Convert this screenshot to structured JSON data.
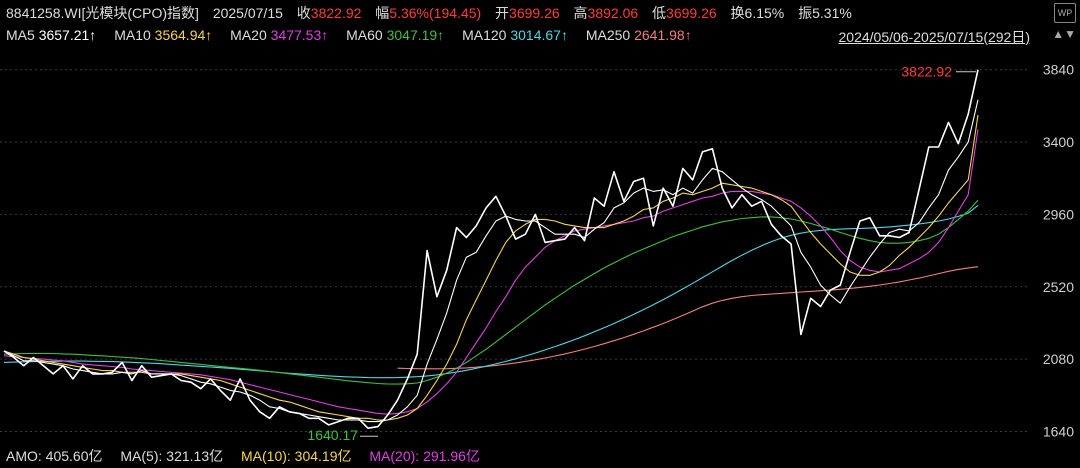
{
  "header": {
    "code": "8841258.WI[光模块(CPO)指数]",
    "date": "2025/07/15",
    "close_label": "收",
    "close": "3822.92",
    "change_label": "幅",
    "change": "5.36%(194.45)",
    "open_label": "开",
    "open": "3699.26",
    "high_label": "高",
    "high": "3892.06",
    "low_label": "低",
    "low": "3699.26",
    "turnover_label": "换",
    "turnover": "6.15%",
    "amp_label": "振",
    "amp": "5.31%"
  },
  "ma_bar": [
    {
      "label": "MA5",
      "value": "3657.21↑",
      "color": "#ffffff"
    },
    {
      "label": "MA10",
      "value": "3564.94↑",
      "color": "#f5d64b"
    },
    {
      "label": "MA20",
      "value": "3477.53↑",
      "color": "#e040e0"
    },
    {
      "label": "MA60",
      "value": "3047.19↑",
      "color": "#3fbf3f"
    },
    {
      "label": "MA120",
      "value": "3014.67↑",
      "color": "#4fd6e6"
    },
    {
      "label": "MA250",
      "value": "2641.98↑",
      "color": "#f08080"
    }
  ],
  "range_text": "2024/05/06-2025/07/15(292日)",
  "bottom_bar": {
    "amo": "AMO: 405.60亿",
    "ma5": "MA(5): 321.13亿",
    "ma10": "MA(10): 304.19亿",
    "ma20": "MA(20): 291.96亿"
  },
  "colors": {
    "up": "#ff3b3b",
    "down": "#3fbf3f",
    "ma5": "#ffffff",
    "ma10": "#f5d64b",
    "ma20": "#e040e0",
    "ma60": "#3fbf3f",
    "ma120": "#4fd6e6",
    "ma250": "#f08080",
    "grid": "#3a3a3a"
  },
  "chart_data": {
    "type": "line",
    "y_ticks": [
      1640,
      2080,
      2520,
      2960,
      3400,
      3840
    ],
    "ylim": [
      1570,
      3960
    ],
    "annotations": {
      "max_label": "3822.92",
      "min_label": "1640.17"
    },
    "x_count": 100,
    "series": [
      {
        "name": "",
        "color": "#ffffff",
        "values": [
          2130,
          2090,
          2040,
          2090,
          2040,
          1990,
          2040,
          1960,
          2040,
          1990,
          1990,
          2000,
          2060,
          1950,
          2040,
          1970,
          1980,
          1990,
          1950,
          1940,
          1900,
          1960,
          1890,
          1830,
          1960,
          1830,
          1760,
          1720,
          1790,
          1760,
          1750,
          1720,
          1720,
          1680,
          1700,
          1720,
          1720,
          1660,
          1670,
          1740,
          1830,
          1960,
          2110,
          2740,
          2460,
          2620,
          2880,
          2820,
          2890,
          3000,
          3070,
          2950,
          2810,
          2840,
          2960,
          2790,
          2800,
          2810,
          2880,
          2800,
          3060,
          3010,
          3220,
          3040,
          3160,
          3180,
          2890,
          3120,
          3010,
          3240,
          3170,
          3340,
          3360,
          3120,
          3000,
          3080,
          3010,
          3040,
          2900,
          2830,
          2780,
          2230,
          2450,
          2400,
          2500,
          2530,
          2730,
          2920,
          2940,
          2830,
          2830,
          2820,
          2850,
          3110,
          3370,
          3370,
          3520,
          3390,
          3570,
          3840
        ]
      },
      {
        "name": "MA5",
        "color": "#ffffff",
        "values": [
          2130,
          2100,
          2070,
          2070,
          2060,
          2050,
          2040,
          2020,
          2010,
          2000,
          1990,
          1990,
          2000,
          1990,
          2010,
          1990,
          1990,
          1990,
          1980,
          1960,
          1940,
          1930,
          1910,
          1890,
          1880,
          1860,
          1830,
          1790,
          1780,
          1760,
          1750,
          1740,
          1730,
          1720,
          1710,
          1710,
          1710,
          1700,
          1700,
          1710,
          1740,
          1790,
          1860,
          2050,
          2200,
          2360,
          2560,
          2700,
          2730,
          2830,
          2920,
          2950,
          2930,
          2920,
          2920,
          2880,
          2840,
          2840,
          2840,
          2820,
          2870,
          2910,
          3000,
          3030,
          3090,
          3120,
          3100,
          3110,
          3080,
          3120,
          3090,
          3170,
          3240,
          3220,
          3170,
          3120,
          3080,
          3050,
          3010,
          2950,
          2890,
          2730,
          2640,
          2530,
          2470,
          2420,
          2520,
          2610,
          2700,
          2780,
          2850,
          2870,
          2860,
          2910,
          3000,
          3080,
          3230,
          3310,
          3400,
          3657
        ]
      },
      {
        "name": "MA10",
        "color": "#f5d64b",
        "values": [
          2130,
          2110,
          2090,
          2080,
          2070,
          2060,
          2050,
          2040,
          2030,
          2020,
          2010,
          2010,
          2000,
          2000,
          2000,
          1990,
          1990,
          1990,
          1990,
          1980,
          1970,
          1960,
          1950,
          1930,
          1910,
          1890,
          1870,
          1850,
          1830,
          1820,
          1800,
          1780,
          1760,
          1750,
          1740,
          1730,
          1720,
          1720,
          1710,
          1710,
          1720,
          1740,
          1780,
          1860,
          1950,
          2050,
          2170,
          2320,
          2440,
          2560,
          2680,
          2790,
          2860,
          2900,
          2930,
          2930,
          2920,
          2900,
          2890,
          2880,
          2880,
          2880,
          2900,
          2920,
          2950,
          2990,
          3000,
          3040,
          3060,
          3090,
          3080,
          3100,
          3120,
          3150,
          3140,
          3130,
          3120,
          3100,
          3080,
          3050,
          3010,
          2930,
          2850,
          2780,
          2720,
          2660,
          2610,
          2590,
          2590,
          2610,
          2650,
          2710,
          2760,
          2820,
          2880,
          2950,
          3030,
          3100,
          3170,
          3565
        ]
      },
      {
        "name": "MA20",
        "color": "#e040e0",
        "values": [
          2100,
          2095,
          2090,
          2085,
          2080,
          2075,
          2070,
          2060,
          2050,
          2045,
          2040,
          2035,
          2030,
          2020,
          2015,
          2010,
          2005,
          2000,
          1995,
          1990,
          1985,
          1975,
          1965,
          1955,
          1940,
          1925,
          1910,
          1895,
          1880,
          1865,
          1850,
          1835,
          1820,
          1805,
          1790,
          1780,
          1770,
          1760,
          1750,
          1745,
          1750,
          1760,
          1780,
          1820,
          1870,
          1930,
          2000,
          2090,
          2180,
          2270,
          2370,
          2460,
          2560,
          2640,
          2700,
          2760,
          2800,
          2830,
          2860,
          2870,
          2880,
          2890,
          2900,
          2910,
          2920,
          2940,
          2950,
          2980,
          3000,
          3020,
          3040,
          3060,
          3070,
          3090,
          3100,
          3100,
          3100,
          3090,
          3080,
          3060,
          3040,
          3000,
          2950,
          2890,
          2820,
          2740,
          2680,
          2640,
          2620,
          2610,
          2620,
          2630,
          2660,
          2690,
          2730,
          2790,
          2880,
          2980,
          3080,
          3478
        ]
      },
      {
        "name": "MA60",
        "color": "#3fbf3f",
        "values": [
          2110,
          2112,
          2114,
          2115,
          2115,
          2114,
          2112,
          2110,
          2107,
          2103,
          2100,
          2096,
          2092,
          2088,
          2083,
          2078,
          2072,
          2066,
          2060,
          2054,
          2048,
          2042,
          2036,
          2030,
          2024,
          2018,
          2012,
          2005,
          1998,
          1991,
          1984,
          1977,
          1970,
          1962,
          1955,
          1948,
          1942,
          1937,
          1932,
          1929,
          1928,
          1930,
          1935,
          1950,
          1970,
          1995,
          2025,
          2060,
          2100,
          2140,
          2185,
          2230,
          2275,
          2320,
          2365,
          2410,
          2450,
          2490,
          2530,
          2565,
          2600,
          2635,
          2665,
          2695,
          2725,
          2750,
          2775,
          2800,
          2825,
          2845,
          2865,
          2885,
          2900,
          2915,
          2925,
          2935,
          2940,
          2945,
          2945,
          2940,
          2932,
          2920,
          2905,
          2888,
          2870,
          2850,
          2832,
          2815,
          2800,
          2790,
          2785,
          2785,
          2790,
          2800,
          2815,
          2840,
          2880,
          2930,
          2980,
          3047
        ]
      },
      {
        "name": "MA120",
        "color": "#4fd6e6",
        "values": [
          2060,
          2062,
          2064,
          2065,
          2066,
          2067,
          2068,
          2068,
          2068,
          2067,
          2066,
          2065,
          2063,
          2061,
          2058,
          2055,
          2052,
          2048,
          2044,
          2040,
          2036,
          2032,
          2028,
          2024,
          2019,
          2014,
          2009,
          2004,
          1999,
          1994,
          1990,
          1986,
          1982,
          1978,
          1975,
          1972,
          1970,
          1968,
          1967,
          1967,
          1968,
          1970,
          1973,
          1978,
          1984,
          1992,
          2001,
          2012,
          2024,
          2037,
          2051,
          2066,
          2082,
          2099,
          2117,
          2136,
          2156,
          2177,
          2199,
          2222,
          2246,
          2271,
          2297,
          2324,
          2352,
          2381,
          2411,
          2442,
          2474,
          2507,
          2541,
          2576,
          2611,
          2646,
          2680,
          2712,
          2742,
          2770,
          2795,
          2816,
          2833,
          2846,
          2856,
          2863,
          2868,
          2871,
          2873,
          2875,
          2877,
          2880,
          2884,
          2889,
          2895,
          2902,
          2910,
          2920,
          2932,
          2948,
          2968,
          3015
        ]
      },
      {
        "name": "MA250",
        "color": "#f08080",
        "values": [
          null,
          null,
          null,
          null,
          null,
          null,
          null,
          null,
          null,
          null,
          null,
          null,
          null,
          null,
          null,
          null,
          null,
          null,
          null,
          null,
          null,
          null,
          null,
          null,
          null,
          null,
          null,
          null,
          null,
          null,
          null,
          null,
          null,
          null,
          null,
          null,
          null,
          null,
          null,
          null,
          2025,
          2023,
          2022,
          2021,
          2021,
          2022,
          2024,
          2027,
          2031,
          2036,
          2042,
          2049,
          2057,
          2066,
          2076,
          2087,
          2099,
          2112,
          2126,
          2141,
          2157,
          2174,
          2192,
          2211,
          2231,
          2252,
          2274,
          2297,
          2321,
          2346,
          2372,
          2398,
          2420,
          2437,
          2450,
          2460,
          2467,
          2472,
          2476,
          2480,
          2484,
          2488,
          2492,
          2496,
          2500,
          2505,
          2510,
          2516,
          2523,
          2531,
          2540,
          2550,
          2561,
          2573,
          2586,
          2600,
          2614,
          2626,
          2635,
          2642
        ]
      }
    ]
  }
}
